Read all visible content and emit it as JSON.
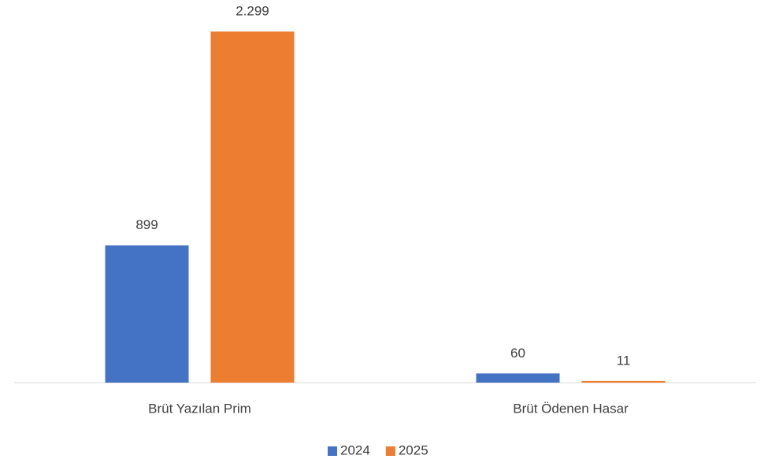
{
  "chart_data": {
    "type": "bar",
    "categories": [
      "Brüt Yazılan Prim",
      "Brüt Ödenen Hasar"
    ],
    "series": [
      {
        "name": "2024",
        "color": "#4472c4",
        "values": [
          899,
          60
        ],
        "value_labels": [
          "899",
          "60"
        ]
      },
      {
        "name": "2025",
        "color": "#ed7d31",
        "values": [
          2299,
          11
        ],
        "value_labels": [
          "2.299",
          "11"
        ]
      }
    ],
    "legend": "bottom"
  }
}
